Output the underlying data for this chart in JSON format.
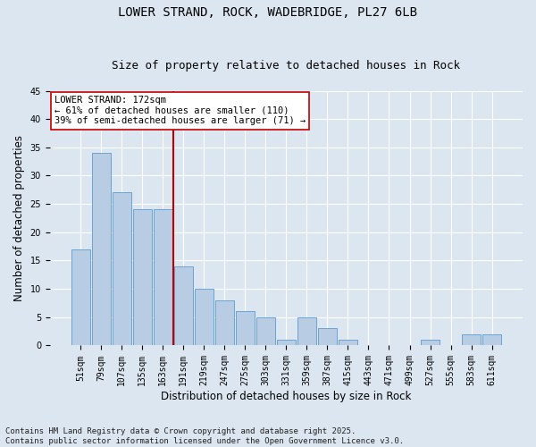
{
  "title_line1": "LOWER STRAND, ROCK, WADEBRIDGE, PL27 6LB",
  "title_line2": "Size of property relative to detached houses in Rock",
  "xlabel": "Distribution of detached houses by size in Rock",
  "ylabel": "Number of detached properties",
  "categories": [
    "51sqm",
    "79sqm",
    "107sqm",
    "135sqm",
    "163sqm",
    "191sqm",
    "219sqm",
    "247sqm",
    "275sqm",
    "303sqm",
    "331sqm",
    "359sqm",
    "387sqm",
    "415sqm",
    "443sqm",
    "471sqm",
    "499sqm",
    "527sqm",
    "555sqm",
    "583sqm",
    "611sqm"
  ],
  "values": [
    17,
    34,
    27,
    24,
    24,
    14,
    10,
    8,
    6,
    5,
    1,
    5,
    3,
    1,
    0,
    0,
    0,
    1,
    0,
    2,
    2
  ],
  "bar_color": "#b8cce4",
  "bar_edge_color": "#5b9bd5",
  "vline_color": "#c00000",
  "vline_pos": 4.5,
  "annotation_text": "LOWER STRAND: 172sqm\n← 61% of detached houses are smaller (110)\n39% of semi-detached houses are larger (71) →",
  "annotation_box_color": "#ffffff",
  "annotation_box_edge": "#c00000",
  "ylim": [
    0,
    45
  ],
  "yticks": [
    0,
    5,
    10,
    15,
    20,
    25,
    30,
    35,
    40,
    45
  ],
  "background_color": "#dce6f1",
  "grid_color": "#ffffff",
  "footnote": "Contains HM Land Registry data © Crown copyright and database right 2025.\nContains public sector information licensed under the Open Government Licence v3.0.",
  "title_fontsize": 10,
  "subtitle_fontsize": 9,
  "axis_label_fontsize": 8.5,
  "tick_fontsize": 7,
  "annotation_fontsize": 7.5,
  "footnote_fontsize": 6.5
}
